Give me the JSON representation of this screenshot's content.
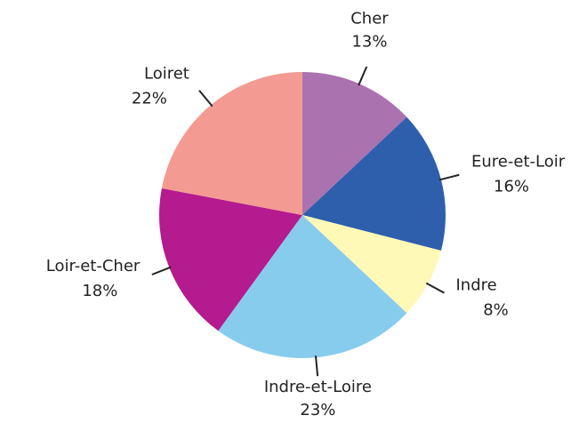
{
  "chart_data": {
    "type": "pie",
    "categories": [
      "Cher",
      "Eure-et-Loir",
      "Indre",
      "Indre-et-Loire",
      "Loir-et-Cher",
      "Loiret"
    ],
    "values": [
      13,
      16,
      8,
      23,
      18,
      22
    ],
    "value_labels": [
      "13%",
      "16%",
      "8%",
      "23%",
      "18%",
      "22%"
    ],
    "colors": [
      "#ab72b0",
      "#2e5fac",
      "#fff9b8",
      "#87cced",
      "#b31b8f",
      "#f39a93"
    ]
  }
}
